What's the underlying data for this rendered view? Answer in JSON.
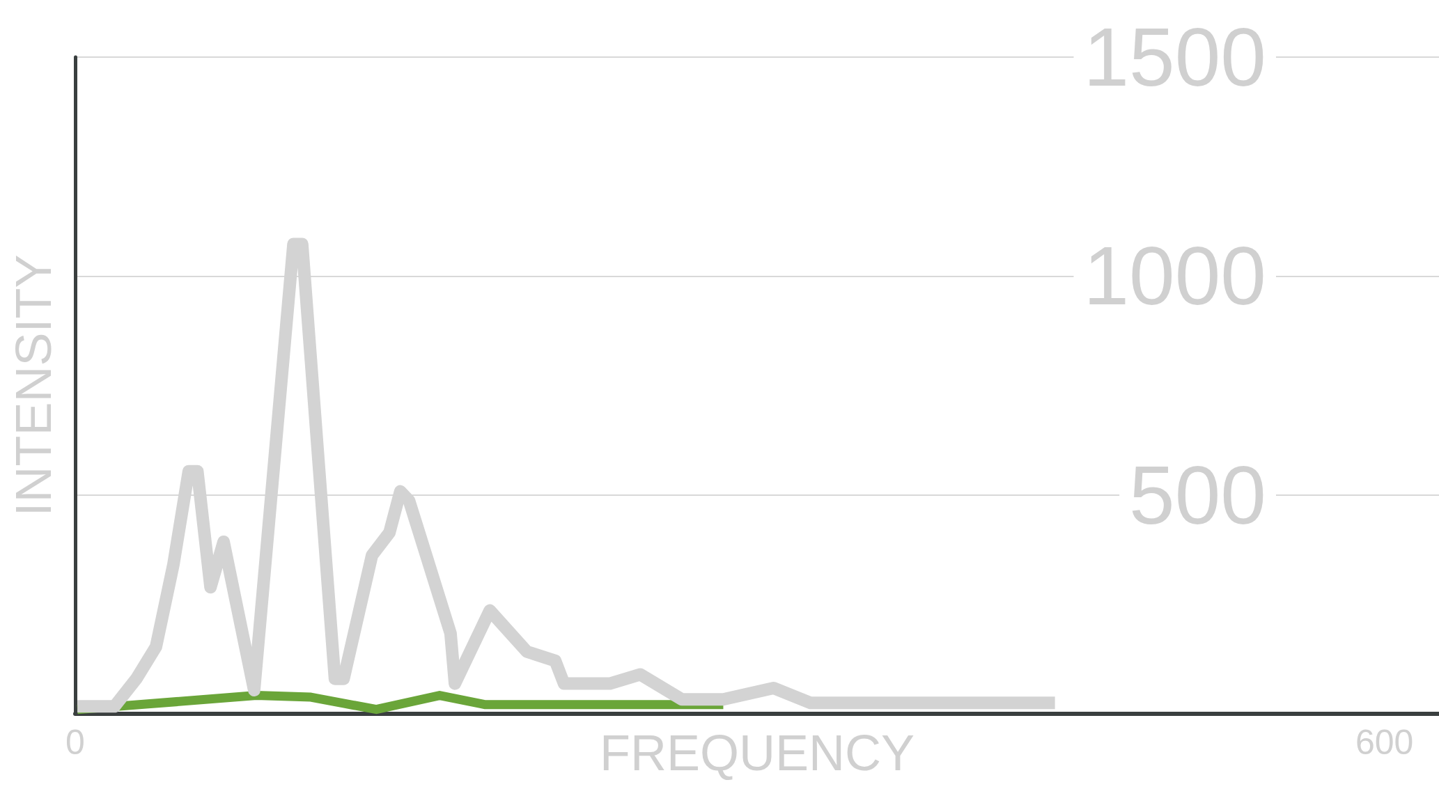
{
  "chart_data": {
    "type": "line",
    "xlabel": "FREQUENCY",
    "ylabel": "INTENSITY",
    "xlim": [
      0,
      625
    ],
    "xticks": [
      0,
      600
    ],
    "ylim": [
      0,
      1500
    ],
    "yticks": [
      500,
      1000,
      1500
    ],
    "grid": "y",
    "marker": "none",
    "line_style": "solid",
    "series": [
      {
        "color": "#d3d3d3",
        "x": [
          1,
          18,
          28,
          37,
          45,
          52,
          56,
          62,
          68,
          82,
          100,
          104,
          119,
          123,
          136,
          144,
          149,
          153,
          172,
          174,
          190,
          207,
          220,
          224,
          245,
          259,
          278,
          297,
          320,
          337,
          449
        ],
        "values": [
          17,
          17,
          80,
          153,
          341,
          554,
          554,
          289,
          393,
          54,
          1073,
          1073,
          80,
          80,
          362,
          414,
          508,
          487,
          184,
          69,
          236,
          142,
          121,
          69,
          69,
          90,
          33,
          33,
          59,
          25,
          25
        ]
      },
      {
        "color": "#6aa539",
        "x": [
          1,
          83,
          108,
          138,
          167,
          188,
          297
        ],
        "values": [
          10,
          42,
          38,
          10,
          42,
          21,
          21
        ]
      }
    ]
  }
}
